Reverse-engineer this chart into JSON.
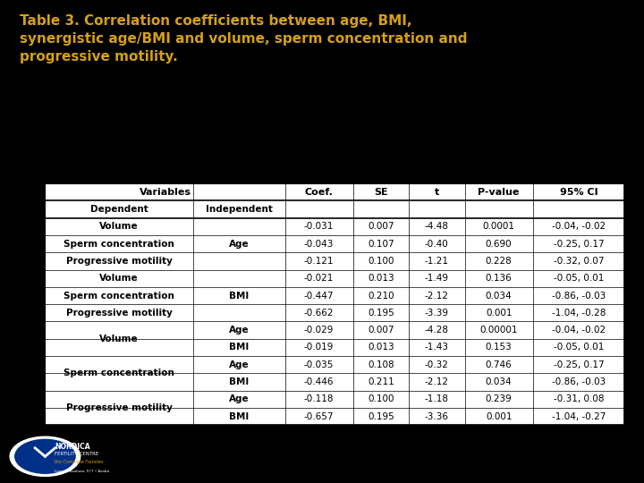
{
  "title": "Table 3. Correlation coefficients between age, BMI,\nsynergistic age/BMI and volume, sperm concentration and\nprogressive motility.",
  "title_color": "#D4A017",
  "bg_color": "#000000",
  "table_bg": "#ffffff",
  "header_row": [
    "Variables",
    "",
    "Coef.",
    "SE",
    "t",
    "P-value",
    "95% CI"
  ],
  "subheader_row": [
    "Dependent",
    "Independent",
    "",
    "",
    "",
    "",
    ""
  ],
  "rows": [
    [
      "Volume",
      "",
      "-0.031",
      "0.007",
      "-4.48",
      "0.0001",
      "-0.04, -0.02"
    ],
    [
      "Sperm concentration",
      "Age",
      "-0.043",
      "0.107",
      "-0.40",
      "0.690",
      "-0.25, 0.17"
    ],
    [
      "Progressive motility",
      "",
      "-0.121",
      "0.100",
      "-1.21",
      "0.228",
      "-0.32, 0.07"
    ],
    [
      "Volume",
      "",
      "-0.021",
      "0.013",
      "-1.49",
      "0.136",
      "-0.05, 0.01"
    ],
    [
      "Sperm concentration",
      "BMI",
      "-0.447",
      "0.210",
      "-2.12",
      "0.034",
      "-0.86, -0.03"
    ],
    [
      "Progressive motility",
      "",
      "-0.662",
      "0.195",
      "-3.39",
      "0.001",
      "-1.04, -0.28"
    ],
    [
      "Volume",
      "Age",
      "-0.029",
      "0.007",
      "-4.28",
      "0.00001",
      "-0.04, -0.02"
    ],
    [
      "",
      "BMI",
      "-0.019",
      "0.013",
      "-1.43",
      "0.153",
      "-0.05, 0.01"
    ],
    [
      "Sperm concentration",
      "Age",
      "-0.035",
      "0.108",
      "-0.32",
      "0.746",
      "-0.25, 0.17"
    ],
    [
      "",
      "BMI",
      "-0.446",
      "0.211",
      "-2.12",
      "0.034",
      "-0.86, -0.03"
    ],
    [
      "Progressive motility",
      "Age",
      "-0.118",
      "0.100",
      "-1.18",
      "0.239",
      "-0.31, 0.08"
    ],
    [
      "",
      "BMI",
      "-0.657",
      "0.195",
      "-3.36",
      "0.001",
      "-1.04, -0.27"
    ]
  ],
  "merged_dep_col1": {
    "6": "Volume",
    "8": "Sperm concentration",
    "10": "Progressive motility"
  },
  "logo_path": null,
  "footer_text": "NORDICA\nFERTILITY CENTRE\nWe Complete Families\nLagos • Asokoro, FCT • Asaba"
}
